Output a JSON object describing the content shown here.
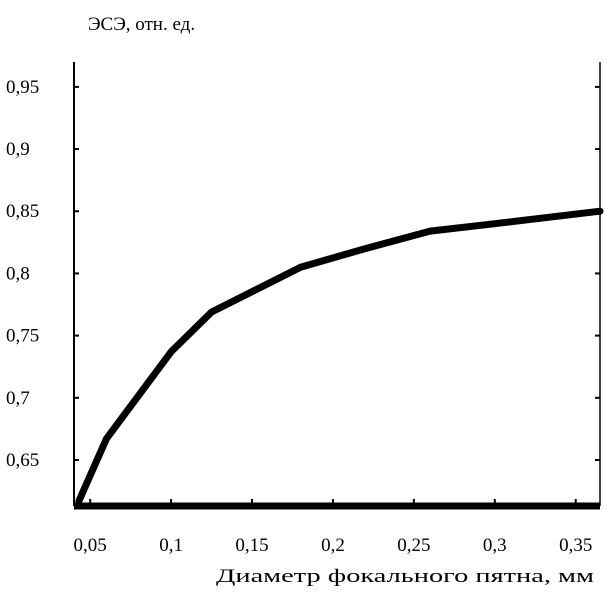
{
  "chart_data": {
    "type": "line",
    "title": "",
    "ylabel": "ЭСЭ, отн. ед.",
    "xlabel": "Диаметр фокального пятна, мм",
    "xlim": [
      0.04,
      0.365
    ],
    "ylim": [
      0.613,
      0.97
    ],
    "x_ticks": [
      {
        "value": 0.05,
        "label": "0,05"
      },
      {
        "value": 0.1,
        "label": "0,1"
      },
      {
        "value": 0.15,
        "label": "0,15"
      },
      {
        "value": 0.2,
        "label": "0,2"
      },
      {
        "value": 0.25,
        "label": "0,25"
      },
      {
        "value": 0.3,
        "label": "0,3"
      },
      {
        "value": 0.35,
        "label": "0,35"
      }
    ],
    "y_ticks": [
      {
        "value": 0.65,
        "label": "0,65"
      },
      {
        "value": 0.7,
        "label": "0,7"
      },
      {
        "value": 0.75,
        "label": "0,75"
      },
      {
        "value": 0.8,
        "label": "0,8"
      },
      {
        "value": 0.85,
        "label": "0,85"
      },
      {
        "value": 0.9,
        "label": "0,9"
      },
      {
        "value": 0.95,
        "label": "0,95"
      }
    ],
    "grid": false,
    "series": [
      {
        "color": "#000000",
        "x": [
          0.043,
          0.06,
          0.1,
          0.125,
          0.18,
          0.22,
          0.26,
          0.3,
          0.365
        ],
        "y": [
          0.617,
          0.667,
          0.737,
          0.769,
          0.805,
          0.82,
          0.834,
          0.84,
          0.85
        ]
      }
    ]
  }
}
